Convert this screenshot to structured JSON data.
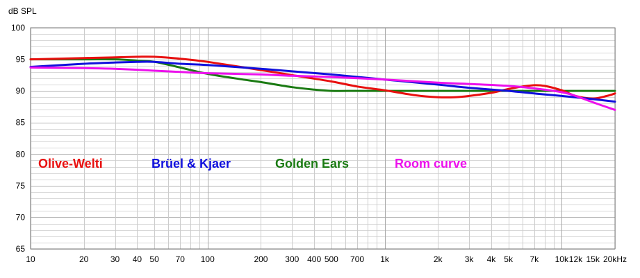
{
  "chart_data": {
    "type": "line",
    "title": "",
    "ylabel": "dB SPL",
    "xlabel": "",
    "x_scale": "log",
    "xlim": [
      10,
      20000
    ],
    "ylim": [
      65,
      100
    ],
    "grid": true,
    "legend_placement": "inside-middle",
    "y_ticks": [
      {
        "value": 100,
        "label": "100"
      },
      {
        "value": 95,
        "label": "95"
      },
      {
        "value": 90,
        "label": "90"
      },
      {
        "value": 85,
        "label": "85"
      },
      {
        "value": 80,
        "label": "80"
      },
      {
        "value": 75,
        "label": "75"
      },
      {
        "value": 70,
        "label": "70"
      },
      {
        "value": 65,
        "label": "65"
      }
    ],
    "x_ticks": [
      {
        "value": 10,
        "label": "10"
      },
      {
        "value": 20,
        "label": "20"
      },
      {
        "value": 30,
        "label": "30"
      },
      {
        "value": 40,
        "label": "40"
      },
      {
        "value": 50,
        "label": "50"
      },
      {
        "value": 70,
        "label": "70"
      },
      {
        "value": 100,
        "label": "100"
      },
      {
        "value": 200,
        "label": "200"
      },
      {
        "value": 300,
        "label": "300"
      },
      {
        "value": 400,
        "label": "400"
      },
      {
        "value": 500,
        "label": "500"
      },
      {
        "value": 700,
        "label": "700"
      },
      {
        "value": 1000,
        "label": "1k"
      },
      {
        "value": 2000,
        "label": "2k"
      },
      {
        "value": 3000,
        "label": "3k"
      },
      {
        "value": 4000,
        "label": "4k"
      },
      {
        "value": 5000,
        "label": "5k"
      },
      {
        "value": 7000,
        "label": "7k"
      },
      {
        "value": 10000,
        "label": "10k"
      },
      {
        "value": 12000,
        "label": "12k"
      },
      {
        "value": 15000,
        "label": "15k"
      },
      {
        "value": 20000,
        "label": "20kHz"
      }
    ],
    "series": [
      {
        "name": "Olive-Welti",
        "color": "#e8100f",
        "x": [
          10,
          20,
          30,
          40,
          50,
          70,
          100,
          200,
          300,
          500,
          700,
          1000,
          1500,
          2000,
          2500,
          3000,
          4000,
          5000,
          6000,
          7000,
          8000,
          10000,
          12000,
          15000,
          18000,
          20000
        ],
        "y": [
          95,
          95.2,
          95.3,
          95.4,
          95.4,
          95.1,
          94.6,
          93.3,
          92.5,
          91.5,
          90.7,
          90.1,
          89.3,
          89,
          89,
          89.2,
          89.7,
          90.3,
          90.7,
          90.9,
          90.8,
          90.1,
          89.2,
          88.8,
          89.2,
          89.6
        ]
      },
      {
        "name": "Brüel & Kjaer",
        "color": "#1010dc",
        "x": [
          10,
          20,
          30,
          40,
          50,
          70,
          100,
          200,
          300,
          500,
          1000,
          2000,
          3000,
          5000,
          7000,
          10000,
          15000,
          20000
        ],
        "y": [
          93.8,
          94.3,
          94.5,
          94.6,
          94.6,
          94.3,
          94.1,
          93.5,
          93.1,
          92.6,
          91.8,
          91,
          90.5,
          90,
          89.6,
          89.2,
          88.7,
          88.3
        ]
      },
      {
        "name": "Golden Ears",
        "color": "#1a7a12",
        "x": [
          10,
          20,
          30,
          40,
          50,
          70,
          100,
          150,
          200,
          300,
          400,
          500,
          700,
          1000,
          2000,
          5000,
          10000,
          20000
        ],
        "y": [
          95,
          95,
          95,
          94.8,
          94.6,
          93.7,
          92.7,
          91.9,
          91.4,
          90.6,
          90.2,
          90,
          90,
          90,
          90,
          90,
          90,
          90
        ]
      },
      {
        "name": "Room curve",
        "color": "#ec10ec",
        "x": [
          10,
          20,
          30,
          50,
          70,
          100,
          200,
          300,
          500,
          1000,
          2000,
          3000,
          5000,
          7000,
          10000,
          12000,
          15000,
          20000
        ],
        "y": [
          93.7,
          93.6,
          93.5,
          93.2,
          93,
          92.8,
          92.6,
          92.4,
          92.2,
          91.8,
          91.3,
          91.1,
          90.8,
          90.4,
          89.8,
          89.2,
          88.2,
          87
        ]
      }
    ]
  }
}
